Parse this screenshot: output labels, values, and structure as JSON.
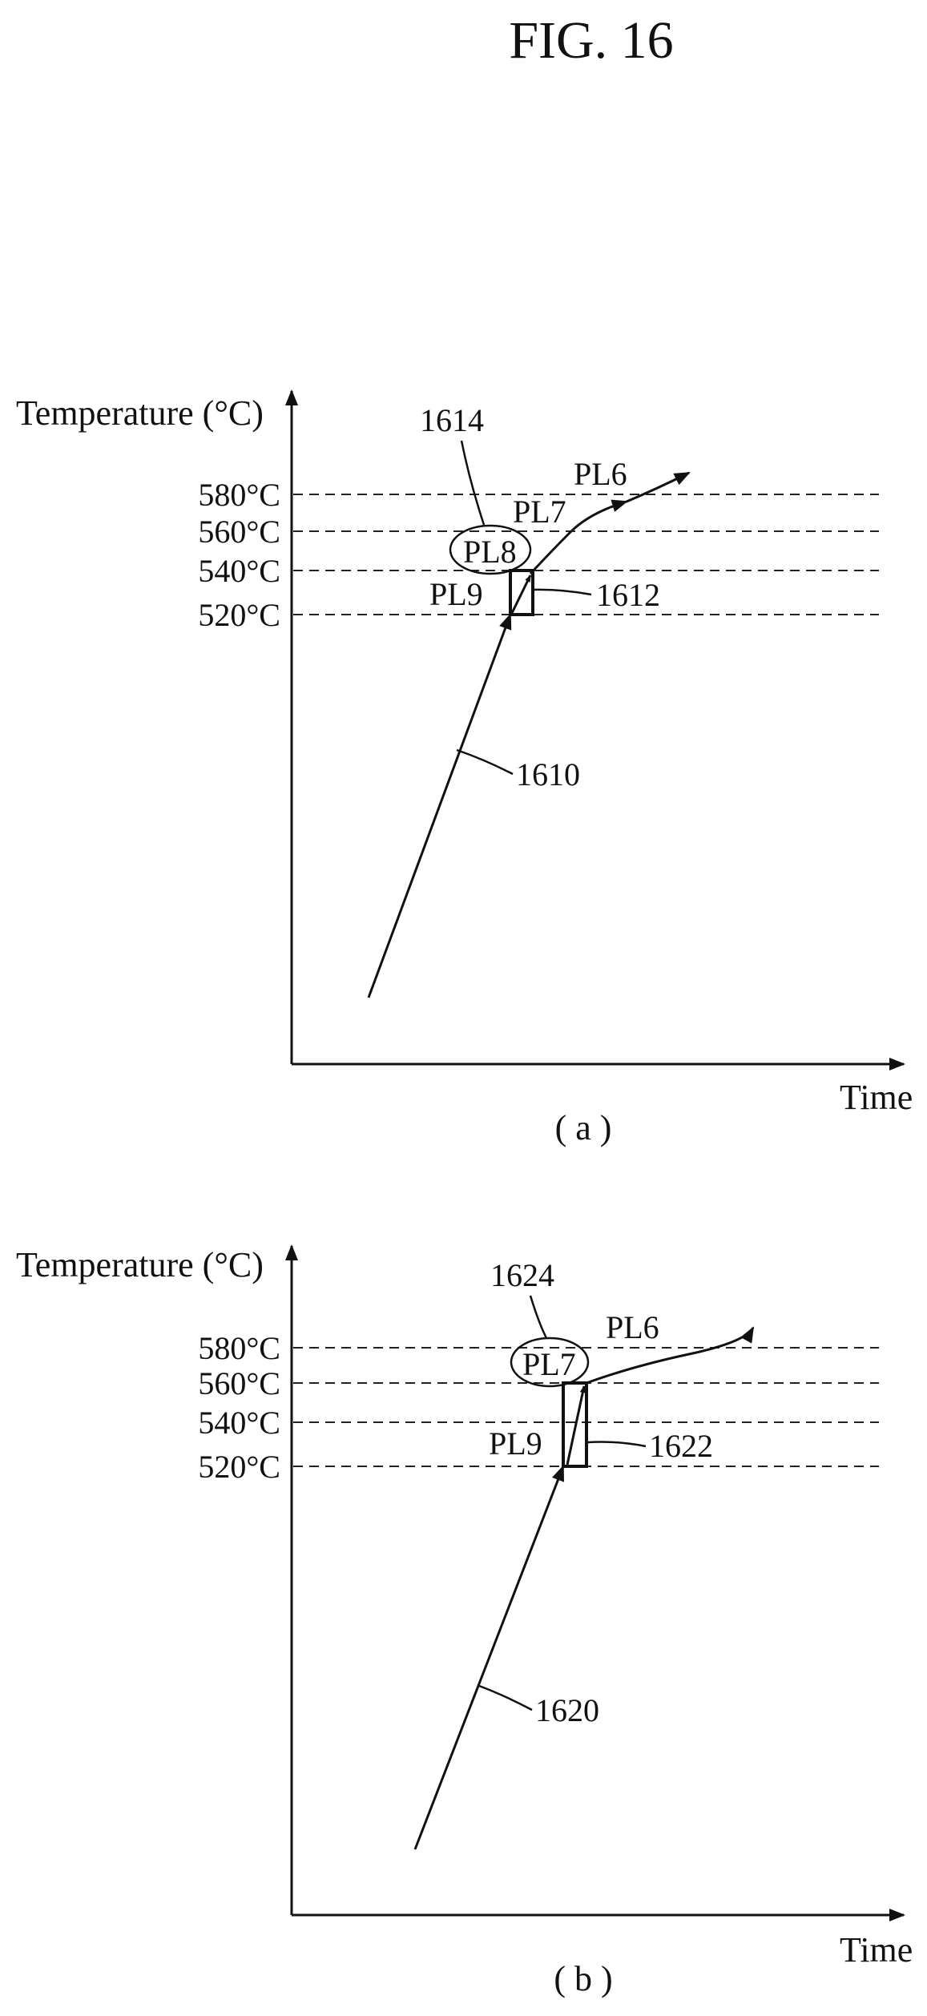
{
  "figure": {
    "title": "FIG. 16"
  },
  "panel_a": {
    "y_axis_label": "Temperature (°C)",
    "x_axis_label": "Time",
    "ticks": [
      "580°C",
      "560°C",
      "540°C",
      "520°C"
    ],
    "labels": {
      "pl6": "PL6",
      "pl7": "PL7",
      "pl8": "PL8",
      "pl9": "PL9"
    },
    "refs": {
      "curve": "1610",
      "box": "1612",
      "ellipse": "1614"
    },
    "caption": "( a )"
  },
  "panel_b": {
    "y_axis_label": "Temperature (°C)",
    "x_axis_label": "Time",
    "ticks": [
      "580°C",
      "560°C",
      "540°C",
      "520°C"
    ],
    "labels": {
      "pl6": "PL6",
      "pl7": "PL7",
      "pl9": "PL9"
    },
    "refs": {
      "curve": "1620",
      "box": "1622",
      "ellipse": "1624"
    },
    "caption": "( b )"
  }
}
